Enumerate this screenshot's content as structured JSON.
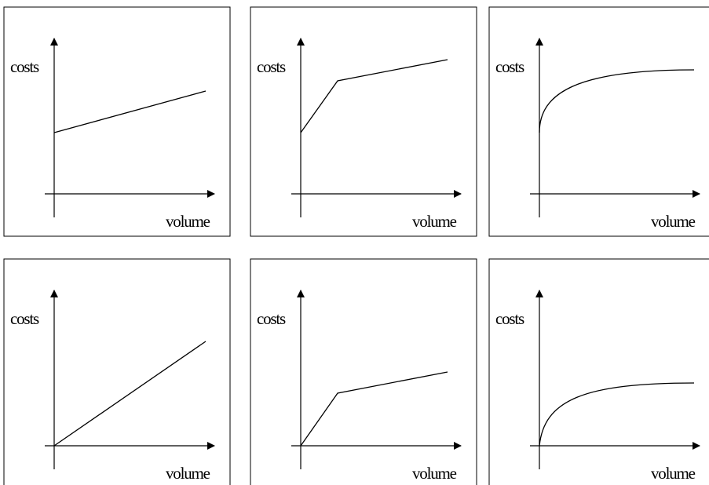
{
  "panels": [
    {
      "y_label": "costs",
      "x_label": "volume",
      "curve": "line-with-intercept"
    },
    {
      "y_label": "costs",
      "x_label": "volume",
      "curve": "piecewise-with-intercept"
    },
    {
      "y_label": "costs",
      "x_label": "volume",
      "curve": "concave-with-intercept"
    },
    {
      "y_label": "costs",
      "x_label": "volume",
      "curve": "line-through-origin"
    },
    {
      "y_label": "costs",
      "x_label": "volume",
      "curve": "piecewise-through-origin"
    },
    {
      "y_label": "costs",
      "x_label": "volume",
      "curve": "concave-through-origin"
    }
  ]
}
